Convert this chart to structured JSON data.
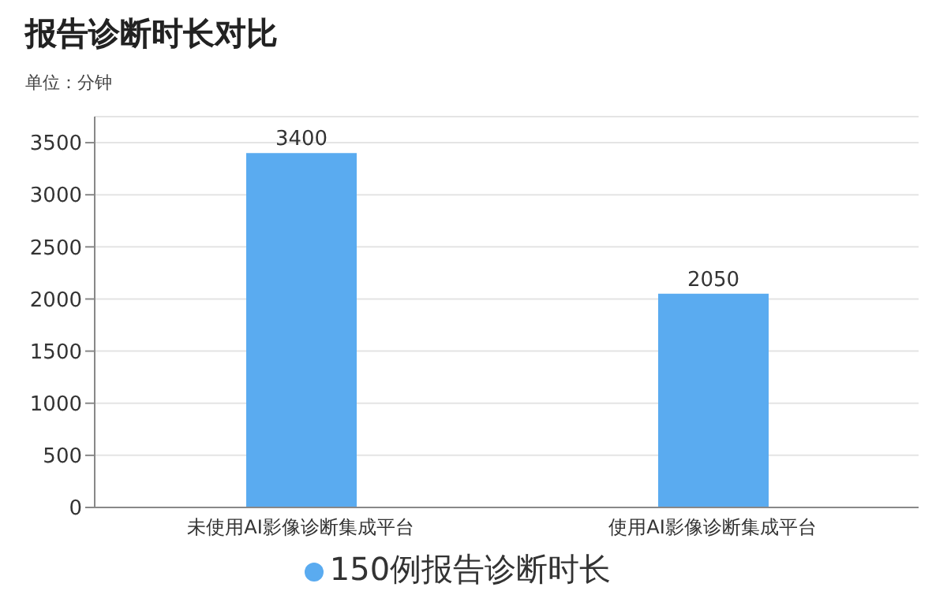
{
  "chart_data": {
    "type": "bar",
    "title": "报告诊断时长对比",
    "subtitle": "单位：分钟",
    "categories": [
      "未使用AI影像诊断集成平台",
      "使用AI影像诊断集成平台"
    ],
    "series": [
      {
        "name": "150例报告诊断时长",
        "color": "#5aabf0",
        "values": [
          3400,
          2050
        ]
      }
    ],
    "ylim": [
      0,
      3750
    ],
    "yticks": [
      0,
      500,
      1000,
      1500,
      2000,
      2500,
      3000,
      3500
    ],
    "grid": "y",
    "legend": "bottom",
    "data_labels": true
  }
}
